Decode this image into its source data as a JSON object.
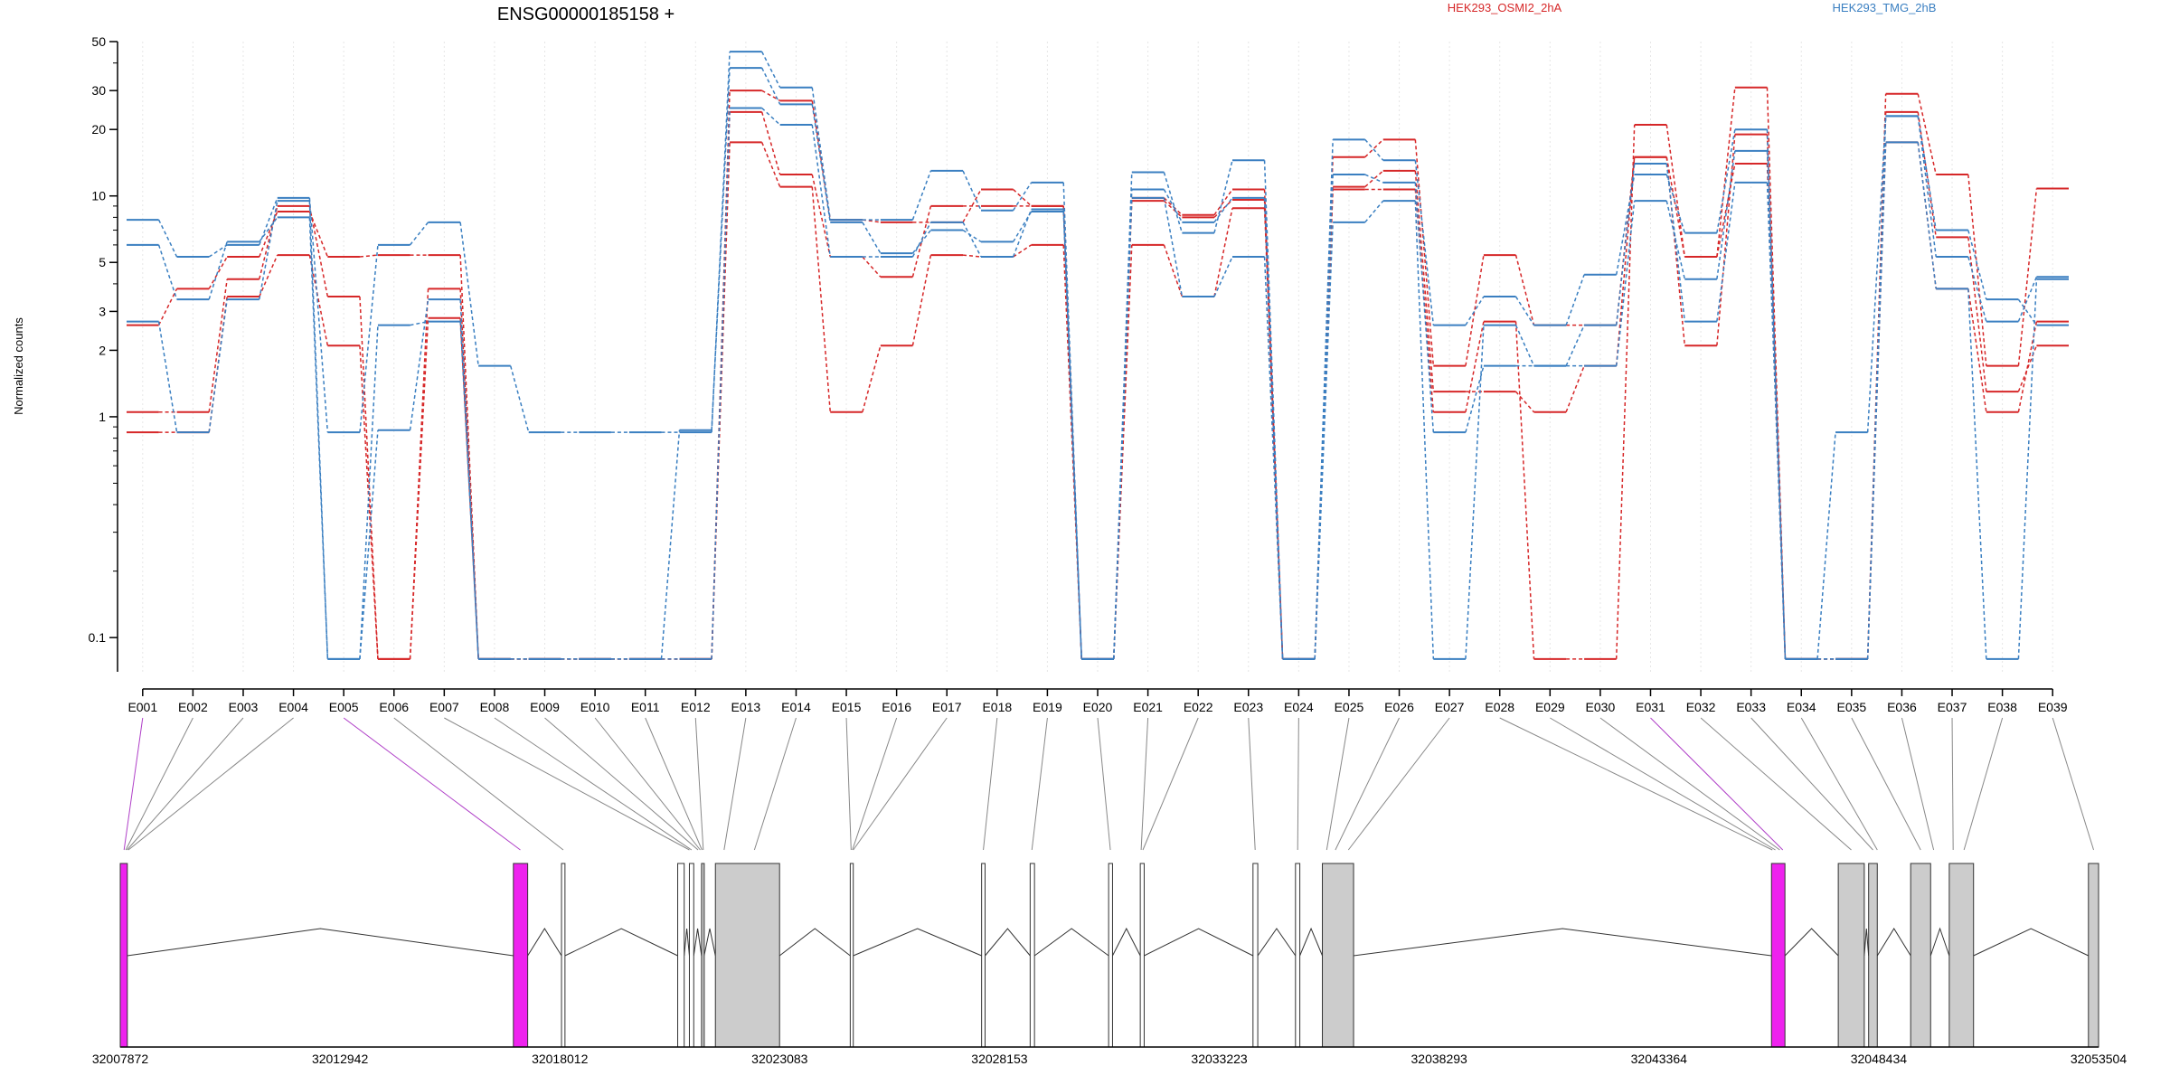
{
  "chart_data": {
    "type": "line",
    "title": "ENSG00000185158 +",
    "ylabel": "Normalized counts",
    "y_scale": "log",
    "ylim": [
      0.07,
      50
    ],
    "y_ticks": [
      0.1,
      1,
      2,
      3,
      5,
      10,
      20,
      30,
      50
    ],
    "y_tick_labels": [
      "0.1",
      "1",
      "2",
      "3",
      "5",
      "10",
      "20",
      "30",
      "50"
    ],
    "grid": "vertical dotted lines at exon bins",
    "legend_position": "top-right",
    "colors": {
      "HEK293_OSMI2_2hA": "#d62728",
      "HEK293_TMG_2hB": "#3a7fc1",
      "connector": "#888888",
      "connector_highlight": "#b040c8",
      "exon_fill": "#cccccc",
      "exon_highlight": "#ee22ee"
    },
    "categories": [
      "E001",
      "E002",
      "E003",
      "E004",
      "E005",
      "E006",
      "E007",
      "E008",
      "E009",
      "E010",
      "E011",
      "E012",
      "E013",
      "E014",
      "E015",
      "E016",
      "E017",
      "E018",
      "E019",
      "E020",
      "E021",
      "E022",
      "E023",
      "E024",
      "E025",
      "E026",
      "E027",
      "E028",
      "E029",
      "E030",
      "E031",
      "E032",
      "E033",
      "E034",
      "E035",
      "E036",
      "E037",
      "E038",
      "E039"
    ],
    "series": [
      {
        "name": "HEK293_OSMI2_2hA",
        "values": [
          2.6,
          3.8,
          5.3,
          8.5,
          5.3,
          5.4,
          5.4,
          0.08,
          0.08,
          0.08,
          0.08,
          0.08,
          30,
          27,
          7.8,
          7.6,
          7.6,
          10.7,
          9,
          0.08,
          9.8,
          8.2,
          10.7,
          0.08,
          15,
          18,
          1.7,
          5.4,
          2.6,
          2.6,
          15,
          5.3,
          31,
          0.08,
          0.08,
          29,
          12.5,
          1.7,
          10.8
        ]
      },
      {
        "name": "HEK293_OSMI2_2hA",
        "values": [
          1.05,
          1.05,
          4.2,
          9,
          3.5,
          0.08,
          3.8,
          0.08,
          0.08,
          0.08,
          0.08,
          0.08,
          24,
          12.5,
          5.3,
          4.3,
          9,
          9,
          9,
          0.08,
          9.5,
          8,
          9.6,
          0.08,
          11,
          13,
          1.3,
          1.3,
          1.05,
          1.7,
          15,
          2.1,
          19,
          0.08,
          0.08,
          24,
          6.5,
          1.3,
          2.1
        ]
      },
      {
        "name": "HEK293_OSMI2_2hA",
        "values": [
          0.85,
          0.85,
          3.5,
          5.4,
          2.1,
          0.08,
          2.8,
          0.08,
          0.08,
          0.08,
          0.08,
          0.08,
          17.5,
          11,
          1.05,
          2.1,
          5.4,
          5.3,
          6,
          0.08,
          6,
          3.5,
          8.8,
          0.08,
          10.7,
          10.7,
          1.05,
          2.7,
          0.08,
          0.08,
          21,
          5.3,
          14,
          0.08,
          0.08,
          17.5,
          3.8,
          1.05,
          2.7
        ]
      },
      {
        "name": "HEK293_TMG_2hB",
        "values": [
          7.8,
          5.3,
          6,
          9.8,
          0.85,
          6,
          7.6,
          1.7,
          0.85,
          0.85,
          0.85,
          0.85,
          45,
          31,
          7.8,
          7.8,
          13,
          8.6,
          11.5,
          0.08,
          12.8,
          6.8,
          14.5,
          0.08,
          18,
          14.5,
          2.6,
          3.5,
          2.6,
          4.4,
          12.5,
          6.8,
          20,
          0.08,
          0.85,
          23,
          7,
          3.4,
          2.6
        ]
      },
      {
        "name": "HEK293_TMG_2hB",
        "values": [
          6,
          3.4,
          6.2,
          8,
          0.08,
          0.87,
          3.4,
          0.08,
          0.08,
          0.08,
          0.08,
          0.87,
          38,
          26,
          7.6,
          5.5,
          7,
          6.2,
          8.5,
          0.08,
          10.7,
          7.6,
          9.8,
          0.08,
          12.5,
          11.5,
          0.85,
          1.7,
          1.7,
          1.7,
          9.5,
          4.2,
          16,
          0.08,
          0.08,
          23,
          5.3,
          2.7,
          4.3
        ]
      },
      {
        "name": "HEK293_TMG_2hB",
        "values": [
          2.7,
          0.85,
          3.4,
          9.5,
          0.08,
          2.6,
          2.7,
          0.08,
          0.08,
          0.08,
          0.08,
          0.08,
          25,
          21,
          5.3,
          5.3,
          7.6,
          5.3,
          8.7,
          0.08,
          9.8,
          3.5,
          5.3,
          0.08,
          7.6,
          9.5,
          0.08,
          2.6,
          1.7,
          2.6,
          14,
          2.7,
          11.5,
          0.08,
          0.08,
          17.5,
          3.8,
          0.08,
          4.2
        ]
      }
    ],
    "gene_model": {
      "genomic_ticks": [
        "32007872",
        "32012942",
        "32018012",
        "32023083",
        "32028153",
        "32033223",
        "32038293",
        "32043364",
        "32048434",
        "32053504"
      ],
      "start": 32007872,
      "end": 32053504,
      "exons": [
        {
          "start": 32007872,
          "end": 32008035,
          "tall": true,
          "fill": "highlight"
        },
        {
          "start": 32016940,
          "end": 32017270,
          "tall": true,
          "fill": "highlight"
        },
        {
          "start": 32018050,
          "end": 32018130,
          "tall": true,
          "fill": "none"
        },
        {
          "start": 32020730,
          "end": 32020880,
          "tall": true,
          "fill": "none"
        },
        {
          "start": 32021000,
          "end": 32021100,
          "tall": true,
          "fill": "none"
        },
        {
          "start": 32021280,
          "end": 32021340,
          "tall": true,
          "fill": "grey"
        },
        {
          "start": 32021600,
          "end": 32023080,
          "tall": true,
          "fill": "grey"
        },
        {
          "start": 32024710,
          "end": 32024780,
          "tall": true,
          "fill": "none"
        },
        {
          "start": 32027740,
          "end": 32027820,
          "tall": true,
          "fill": "none"
        },
        {
          "start": 32028860,
          "end": 32028960,
          "tall": true,
          "fill": "none"
        },
        {
          "start": 32030670,
          "end": 32030760,
          "tall": true,
          "fill": "none"
        },
        {
          "start": 32031400,
          "end": 32031490,
          "tall": true,
          "fill": "none"
        },
        {
          "start": 32034000,
          "end": 32034110,
          "tall": true,
          "fill": "none"
        },
        {
          "start": 32034980,
          "end": 32035080,
          "tall": true,
          "fill": "none"
        },
        {
          "start": 32035600,
          "end": 32036320,
          "tall": true,
          "fill": "grey"
        },
        {
          "start": 32045960,
          "end": 32046270,
          "tall": true,
          "fill": "highlight"
        },
        {
          "start": 32047500,
          "end": 32048100,
          "tall": true,
          "fill": "grey"
        },
        {
          "start": 32048200,
          "end": 32048400,
          "tall": true,
          "fill": "grey"
        },
        {
          "start": 32049170,
          "end": 32049630,
          "tall": true,
          "fill": "grey"
        },
        {
          "start": 32050060,
          "end": 32050620,
          "tall": true,
          "fill": "grey"
        },
        {
          "start": 32053270,
          "end": 32053504,
          "tall": true,
          "fill": "grey"
        }
      ],
      "bin_anchor": [
        32007960,
        32008000,
        32008030,
        32008060,
        32017100,
        32018090,
        32021000,
        32021050,
        32021200,
        32021250,
        32021290,
        32021320,
        32021800,
        32022500,
        32024730,
        32024760,
        32024780,
        32027780,
        32028900,
        32030710,
        32031420,
        32031460,
        32034050,
        32035030,
        32035700,
        32035900,
        32036200,
        32045980,
        32046050,
        32046150,
        32046220,
        32047800,
        32048300,
        32048400,
        32049400,
        32049700,
        32050150,
        32050400,
        32053390
      ],
      "highlighted_bins": [
        "E001",
        "E005",
        "E031"
      ]
    }
  }
}
